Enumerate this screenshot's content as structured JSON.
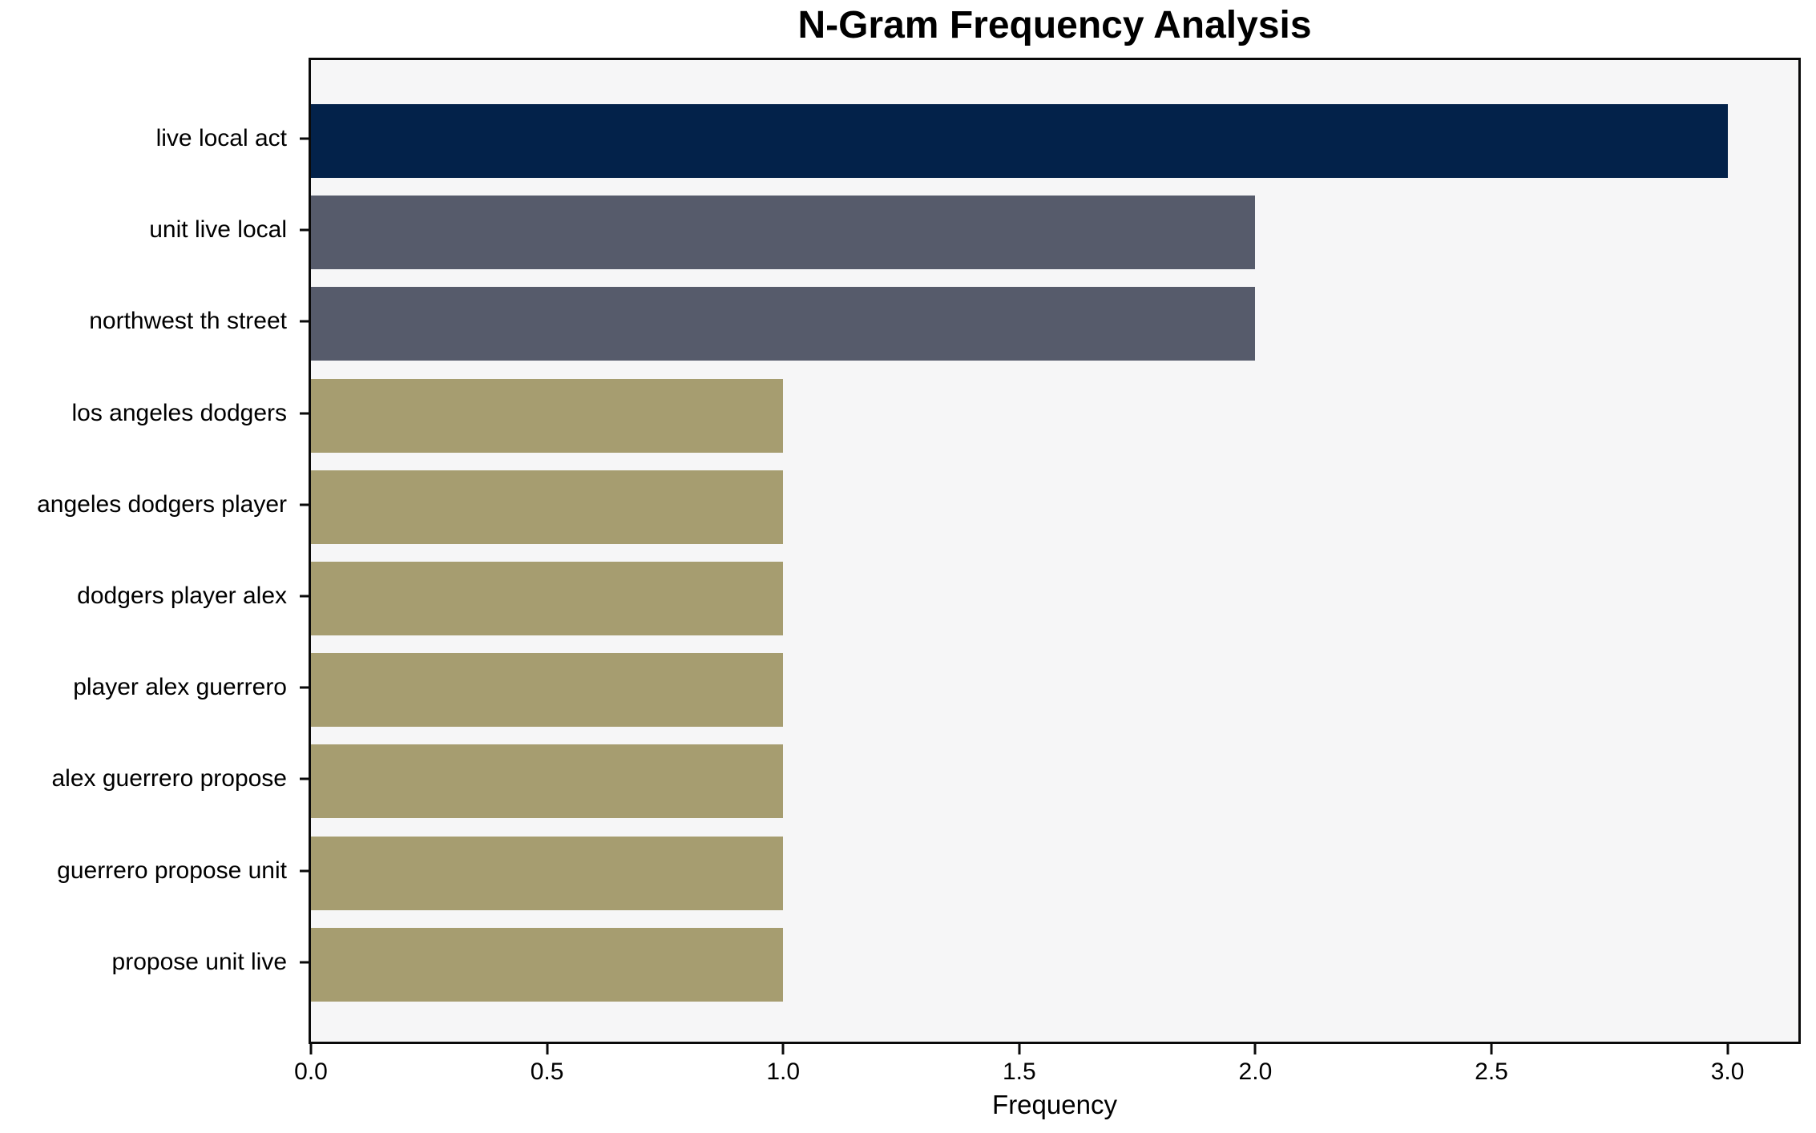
{
  "chart_data": {
    "type": "bar",
    "orientation": "horizontal",
    "title": "N-Gram Frequency Analysis",
    "xlabel": "Frequency",
    "ylabel": "",
    "categories": [
      "live local act",
      "unit live local",
      "northwest th street",
      "los angeles dodgers",
      "angeles dodgers player",
      "dodgers player alex",
      "player alex guerrero",
      "alex guerrero propose",
      "guerrero propose unit",
      "propose unit live"
    ],
    "values": [
      3,
      2,
      2,
      1,
      1,
      1,
      1,
      1,
      1,
      1
    ],
    "bar_colors": [
      "#03224a",
      "#565b6b",
      "#565b6b",
      "#a69d70",
      "#a69d70",
      "#a69d70",
      "#a69d70",
      "#a69d70",
      "#a69d70",
      "#a69d70"
    ],
    "xlim": [
      0,
      3.15
    ],
    "xticks": [
      0.0,
      0.5,
      1.0,
      1.5,
      2.0,
      2.5,
      3.0
    ],
    "xtick_labels": [
      "0.0",
      "0.5",
      "1.0",
      "1.5",
      "2.0",
      "2.5",
      "3.0"
    ],
    "grid": false,
    "legend": null,
    "colors": {
      "plot_background": "#f6f6f7",
      "figure_background": "#ffffff",
      "spine": "#0a0a0a",
      "text": "#000000"
    }
  }
}
